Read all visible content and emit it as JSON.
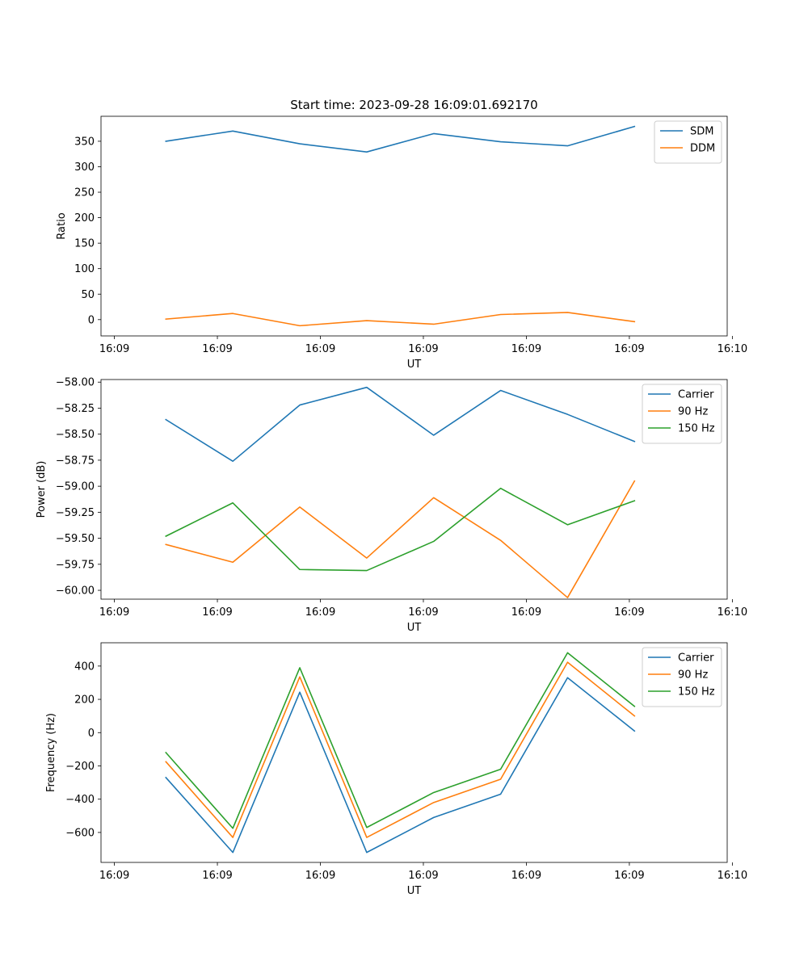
{
  "chart_data": [
    {
      "type": "line",
      "title": "Start time: 2023-09-28 16:09:01.692170",
      "xlabel": "UT",
      "ylabel": "Ratio",
      "x": [
        0.5,
        1.15,
        1.8,
        2.45,
        3.1,
        3.75,
        4.4,
        5.05
      ],
      "xlim": [
        -0.13,
        5.95
      ],
      "x_ticks": [
        {
          "value": 0,
          "label": "16:09"
        },
        {
          "value": 1,
          "label": "16:09"
        },
        {
          "value": 2,
          "label": "16:09"
        },
        {
          "value": 3,
          "label": "16:09"
        },
        {
          "value": 4,
          "label": "16:09"
        },
        {
          "value": 5,
          "label": "16:09"
        },
        {
          "value": 6,
          "label": "16:10"
        }
      ],
      "ylim": [
        -32,
        399
      ],
      "y_ticks": [
        0,
        50,
        100,
        150,
        200,
        250,
        300,
        350
      ],
      "legend_position": "upper right",
      "series": [
        {
          "name": "SDM",
          "color": "#1f77b4",
          "values": [
            350,
            370,
            345,
            329,
            365,
            349,
            341,
            379
          ]
        },
        {
          "name": "DDM",
          "color": "#ff7f0e",
          "values": [
            1,
            12,
            -12,
            -2,
            -9,
            10,
            14,
            -4
          ]
        }
      ]
    },
    {
      "type": "line",
      "title": "",
      "xlabel": "UT",
      "ylabel": "Power (dB)",
      "x": [
        0.5,
        1.15,
        1.8,
        2.45,
        3.1,
        3.75,
        4.4,
        5.05
      ],
      "xlim": [
        -0.13,
        5.95
      ],
      "x_ticks": [
        {
          "value": 0,
          "label": "16:09"
        },
        {
          "value": 1,
          "label": "16:09"
        },
        {
          "value": 2,
          "label": "16:09"
        },
        {
          "value": 3,
          "label": "16:09"
        },
        {
          "value": 4,
          "label": "16:09"
        },
        {
          "value": 5,
          "label": "16:09"
        },
        {
          "value": 6,
          "label": "16:10"
        }
      ],
      "ylim": [
        -60.085,
        -57.975
      ],
      "y_ticks": [
        {
          "value": -60.0,
          "label": "−60.00"
        },
        {
          "value": -59.75,
          "label": "−59.75"
        },
        {
          "value": -59.5,
          "label": "−59.50"
        },
        {
          "value": -59.25,
          "label": "−59.25"
        },
        {
          "value": -59.0,
          "label": "−59.00"
        },
        {
          "value": -58.75,
          "label": "−58.75"
        },
        {
          "value": -58.5,
          "label": "−58.50"
        },
        {
          "value": -58.25,
          "label": "−58.25"
        },
        {
          "value": -58.0,
          "label": "−58.00"
        }
      ],
      "legend_position": "upper right",
      "series": [
        {
          "name": "Carrier",
          "color": "#1f77b4",
          "values": [
            -58.36,
            -58.76,
            -58.22,
            -58.05,
            -58.51,
            -58.08,
            -58.31,
            -58.57
          ]
        },
        {
          "name": "90 Hz",
          "color": "#ff7f0e",
          "values": [
            -59.56,
            -59.73,
            -59.2,
            -59.69,
            -59.11,
            -59.52,
            -60.07,
            -58.95
          ]
        },
        {
          "name": "150 Hz",
          "color": "#2ca02c",
          "values": [
            -59.48,
            -59.16,
            -59.8,
            -59.81,
            -59.53,
            -59.02,
            -59.37,
            -59.14
          ]
        }
      ]
    },
    {
      "type": "line",
      "title": "",
      "xlabel": "UT",
      "ylabel": "Frequency (Hz)",
      "x": [
        0.5,
        1.15,
        1.8,
        2.45,
        3.1,
        3.75,
        4.4,
        5.05
      ],
      "xlim": [
        -0.13,
        5.95
      ],
      "x_ticks": [
        {
          "value": 0,
          "label": "16:09"
        },
        {
          "value": 1,
          "label": "16:09"
        },
        {
          "value": 2,
          "label": "16:09"
        },
        {
          "value": 3,
          "label": "16:09"
        },
        {
          "value": 4,
          "label": "16:09"
        },
        {
          "value": 5,
          "label": "16:09"
        },
        {
          "value": 6,
          "label": "16:10"
        }
      ],
      "ylim": [
        -780,
        540
      ],
      "y_ticks": [
        {
          "value": -600,
          "label": "−600"
        },
        {
          "value": -400,
          "label": "−400"
        },
        {
          "value": -200,
          "label": "−200"
        },
        {
          "value": 0,
          "label": "0"
        },
        {
          "value": 200,
          "label": "200"
        },
        {
          "value": 400,
          "label": "400"
        }
      ],
      "legend_position": "upper right",
      "series": [
        {
          "name": "Carrier",
          "color": "#1f77b4",
          "values": [
            -270,
            -720,
            243,
            -720,
            -510,
            -370,
            330,
            10
          ]
        },
        {
          "name": "90 Hz",
          "color": "#ff7f0e",
          "values": [
            -175,
            -630,
            335,
            -630,
            -420,
            -280,
            423,
            100
          ]
        },
        {
          "name": "150 Hz",
          "color": "#2ca02c",
          "values": [
            -120,
            -575,
            390,
            -570,
            -360,
            -220,
            480,
            158
          ]
        }
      ]
    }
  ]
}
